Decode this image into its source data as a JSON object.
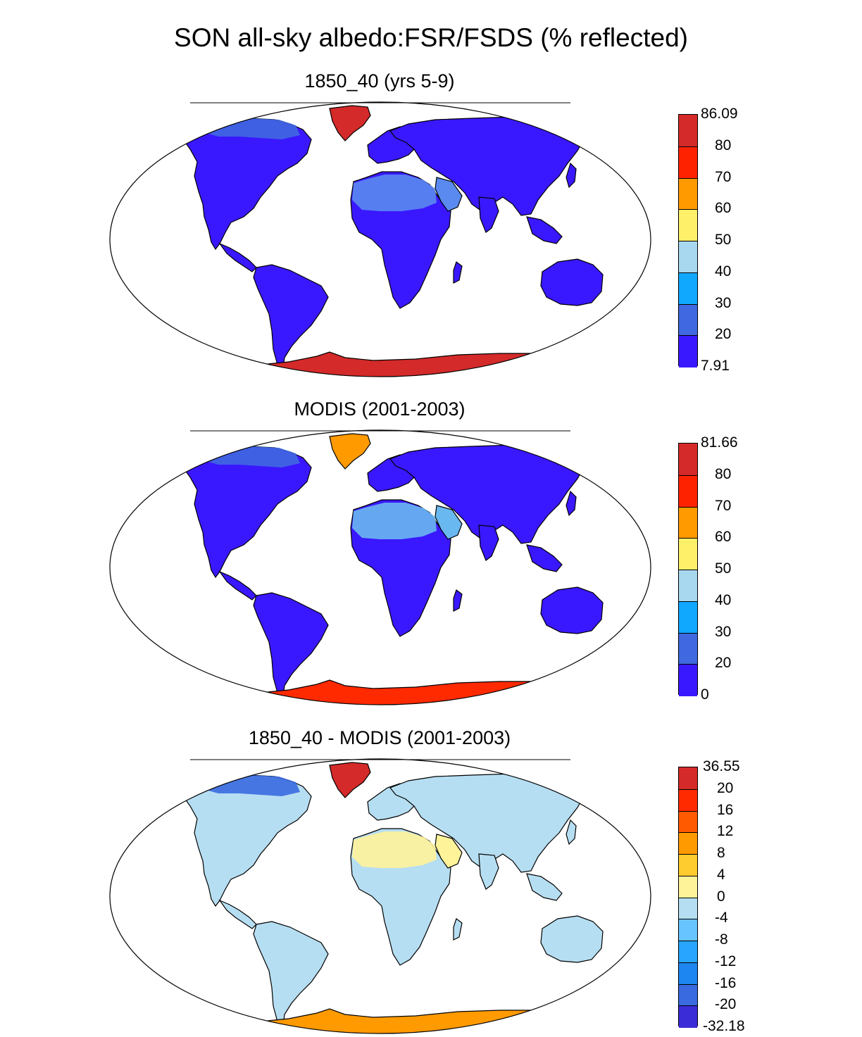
{
  "figure": {
    "title": "SON all-sky albedo:FSR/FSDS (% reflected)"
  },
  "panels": [
    {
      "title": "1850_40 (yrs 5-9)",
      "colorbar": {
        "labels": [
          "86.09",
          "80",
          "70",
          "60",
          "50",
          "40",
          "30",
          "20",
          "7.91"
        ],
        "colors": [
          "#d42a2a",
          "#ff2200",
          "#ff9a00",
          "#fff06a",
          "#a8d8f0",
          "#10a8ff",
          "#4068e0",
          "#3a18ff"
        ]
      },
      "fill": {
        "land": "#3a18ff",
        "desert": "#5a8af0",
        "greenland": "#d42a2a",
        "antarctica": "#d42a2a",
        "arctic": "#4068e0"
      }
    },
    {
      "title": "MODIS (2001-2003)",
      "colorbar": {
        "labels": [
          "81.66",
          "80",
          "70",
          "60",
          "50",
          "40",
          "30",
          "20",
          "0"
        ],
        "colors": [
          "#d42a2a",
          "#ff2200",
          "#ff9a00",
          "#fff06a",
          "#a8d8f0",
          "#10a8ff",
          "#4068e0",
          "#3a18ff"
        ]
      },
      "fill": {
        "land": "#3a18ff",
        "desert": "#6ab8f0",
        "greenland": "#ff9a00",
        "antarctica": "#ff2a00",
        "arctic": "#4068e0"
      }
    },
    {
      "title": "1850_40 - MODIS (2001-2003)",
      "colorbar": {
        "labels": [
          "36.55",
          "20",
          "16",
          "12",
          "8",
          "4",
          "0",
          "-4",
          "-8",
          "-12",
          "-16",
          "-20",
          "-32.18"
        ],
        "colors": [
          "#d42a2a",
          "#ff2a00",
          "#ff5a00",
          "#ff9a00",
          "#ffcc30",
          "#fff39a",
          "#b6def2",
          "#68c4ff",
          "#28a6ff",
          "#1e86f0",
          "#3a6ae0",
          "#3a2cd6"
        ]
      },
      "fill": {
        "land": "#b6def2",
        "desert": "#fff39a",
        "greenland": "#d42a2a",
        "antarctica": "#ff9a00",
        "arctic": "#3a6ae0"
      }
    }
  ]
}
